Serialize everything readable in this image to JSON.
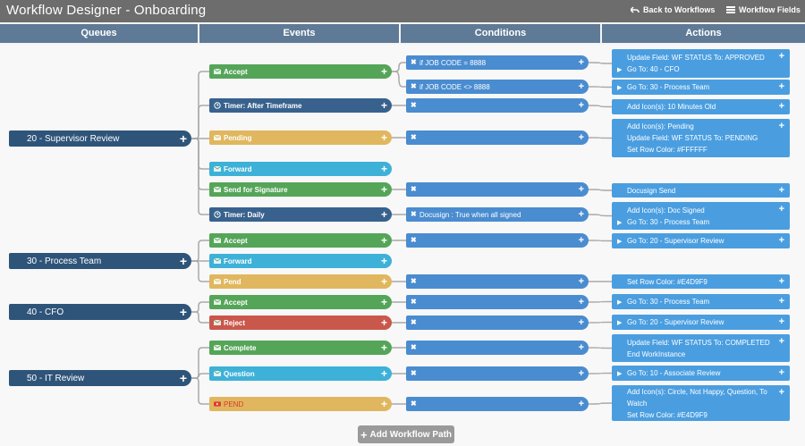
{
  "app": {
    "title": "Workflow Designer - Onboarding",
    "back_label": "Back to Workflows",
    "fields_label": "Workflow Fields"
  },
  "columns": {
    "queues": "Queues",
    "events": "Events",
    "conditions": "Conditions",
    "actions": "Actions"
  },
  "queues": [
    {
      "label": "20 - Supervisor Review"
    },
    {
      "label": "30 - Process Team"
    },
    {
      "label": "40 - CFO"
    },
    {
      "label": "50 - IT Review"
    }
  ],
  "events": [
    {
      "label": "Accept",
      "color": "green",
      "icon": "envelope-icon"
    },
    {
      "label": "Timer: After Timeframe",
      "color": "navy",
      "icon": "clock-icon"
    },
    {
      "label": "Pending",
      "color": "yellow",
      "icon": "envelope-icon"
    },
    {
      "label": "Forward",
      "color": "cyan",
      "icon": "envelope-icon"
    },
    {
      "label": "Send for Signature",
      "color": "green",
      "icon": "envelope-icon"
    },
    {
      "label": "Timer: Daily",
      "color": "navy",
      "icon": "clock-icon"
    },
    {
      "label": "Accept",
      "color": "green",
      "icon": "envelope-icon"
    },
    {
      "label": "Forward",
      "color": "cyan",
      "icon": "envelope-icon"
    },
    {
      "label": "Pend",
      "color": "yellow",
      "icon": "envelope-icon"
    },
    {
      "label": "Accept",
      "color": "green",
      "icon": "envelope-icon"
    },
    {
      "label": "Reject",
      "color": "red",
      "icon": "envelope-icon"
    },
    {
      "label": "Complete",
      "color": "green",
      "icon": "envelope-icon"
    },
    {
      "label": "Question",
      "color": "cyan",
      "icon": "envelope-icon"
    },
    {
      "label": "PEND",
      "color": "yellow",
      "icon": "video-icon"
    }
  ],
  "conditions": [
    {
      "label": "if JOB CODE = 8888"
    },
    {
      "label": "if JOB CODE <> 8888"
    },
    {
      "label": ""
    },
    {
      "label": ""
    },
    {
      "label": ""
    },
    {
      "label": "Docusign : True when all signed"
    },
    {
      "label": ""
    },
    {
      "label": ""
    },
    {
      "label": ""
    },
    {
      "label": ""
    },
    {
      "label": ""
    },
    {
      "label": ""
    },
    {
      "label": ""
    }
  ],
  "actions": [
    {
      "lines": [
        {
          "text": "Update Field: WF STATUS To: APPROVED",
          "arrow": false
        },
        {
          "text": "Go To: 40 - CFO",
          "arrow": true
        }
      ]
    },
    {
      "lines": [
        {
          "text": "Go To: 30 - Process Team",
          "arrow": true
        }
      ]
    },
    {
      "lines": [
        {
          "text": "Add Icon(s): 10 Minutes Old",
          "arrow": false
        }
      ]
    },
    {
      "lines": [
        {
          "text": "Add Icon(s): Pending",
          "arrow": false
        },
        {
          "text": "Update Field: WF STATUS To: PENDING",
          "arrow": false
        },
        {
          "text": "Set Row Color: #FFFFFF",
          "arrow": false
        }
      ]
    },
    {
      "lines": [
        {
          "text": "Docusign Send",
          "arrow": false
        }
      ]
    },
    {
      "lines": [
        {
          "text": "Add Icon(s): Doc Signed",
          "arrow": false
        },
        {
          "text": "Go To: 30 - Process Team",
          "arrow": true
        }
      ]
    },
    {
      "lines": [
        {
          "text": "Go To: 20 - Supervisor Review",
          "arrow": true
        }
      ]
    },
    {
      "lines": [
        {
          "text": "Set Row Color: #E4D9F9",
          "arrow": false
        }
      ]
    },
    {
      "lines": [
        {
          "text": "Go To: 30 - Process Team",
          "arrow": true
        }
      ]
    },
    {
      "lines": [
        {
          "text": "Go To: 20 - Supervisor Review",
          "arrow": true
        }
      ]
    },
    {
      "lines": [
        {
          "text": "Update Field: WF STATUS To: COMPLETED",
          "arrow": false
        },
        {
          "text": "End WorkInstance",
          "arrow": false
        }
      ]
    },
    {
      "lines": [
        {
          "text": "Go To: 10 - Associate Review",
          "arrow": true
        }
      ]
    },
    {
      "lines": [
        {
          "text": "Add Icon(s): Circle, Not Happy, Question, To",
          "arrow": false
        },
        {
          "text": "Watch",
          "arrow": false
        },
        {
          "text": "Set Row Color: #E4D9F9",
          "arrow": false
        }
      ]
    }
  ],
  "add_path_label": "Add Workflow Path",
  "colors": {
    "queue": "#2f5479",
    "header": "#5f7a96",
    "condition": "#4a8cd0",
    "action": "#4a9ee0",
    "titlebar": "#6d6d6d"
  }
}
